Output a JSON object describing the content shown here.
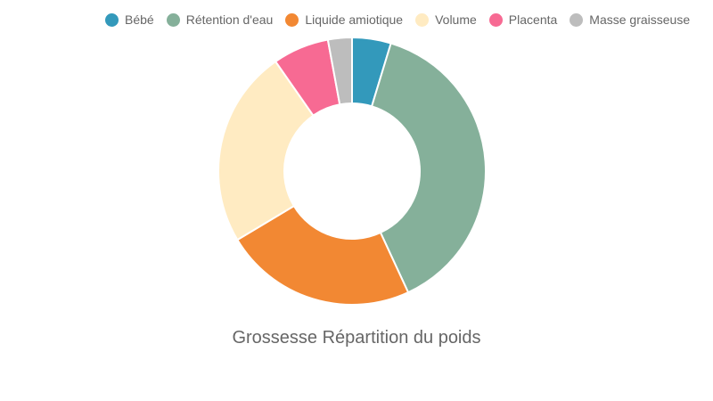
{
  "chart_data": {
    "type": "pie",
    "variant": "donut",
    "title": "Grossesse Répartition du poids",
    "legend_position": "top",
    "categories": [
      "Bébé",
      "Rétention d'eau",
      "Liquide amiotique",
      "Volume",
      "Placenta",
      "Masse graisseuse"
    ],
    "values": [
      4.7,
      38.4,
      23.3,
      23.9,
      6.8,
      2.9
    ],
    "colors": [
      "#3399bb",
      "#85b09a",
      "#f28833",
      "#ffebc2",
      "#f76a93",
      "#bdbdbd"
    ]
  }
}
